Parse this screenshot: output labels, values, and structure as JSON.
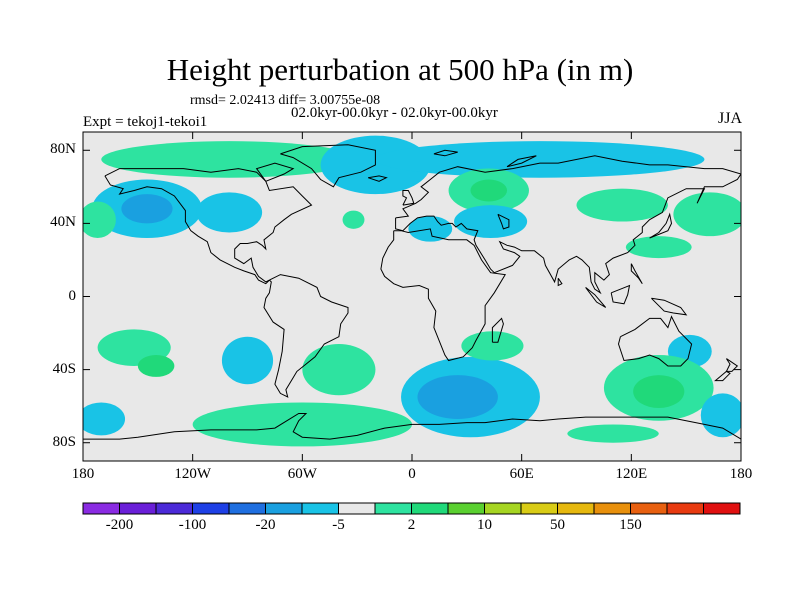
{
  "map": {
    "title": "Height perturbation at 500 hPa (in m)",
    "stats_text": "rmsd= 2.02413 diff= 3.00755e-08",
    "period_text": "02.0kyr-00.0kyr - 02.0kyr-00.0kyr",
    "expt_text": "Expt = tekoj1-tekoi1",
    "season": "JJA",
    "lat_ticks": [
      "80N",
      "40N",
      "0",
      "40S",
      "80S"
    ],
    "lon_ticks": [
      "180",
      "120W",
      "60W",
      "0",
      "60E",
      "120E",
      "180"
    ],
    "lat_values": [
      80,
      40,
      0,
      -40,
      -80
    ],
    "lon_values": [
      -180,
      -120,
      -60,
      0,
      60,
      120,
      180
    ],
    "extent": {
      "lon": [
        -180,
        180
      ],
      "lat": [
        -90,
        90
      ]
    },
    "projection": "cylindrical-equidistant",
    "background_color": "#e8e8e8",
    "coastline_color": "#000000"
  },
  "colorbar": {
    "colors": [
      "#8a2be2",
      "#6a1fd8",
      "#4b2ad8",
      "#1e40e6",
      "#1f6fe0",
      "#1aa0e0",
      "#19c3e6",
      "#e8e8e8",
      "#2ee3a0",
      "#20d97a",
      "#5ad030",
      "#a6d522",
      "#d9cc16",
      "#e6b80e",
      "#e8900c",
      "#e86010",
      "#e83a10",
      "#e01010"
    ],
    "labels": [
      "-200",
      "-100",
      "-20",
      "-5",
      "2",
      "10",
      "50",
      "150"
    ],
    "label_boundaries": [
      1,
      3,
      5,
      7,
      9,
      11,
      13,
      15
    ]
  },
  "anomalies": [
    {
      "lon": -100,
      "lat": 75,
      "rx": 70,
      "ry": 10,
      "level": "pos-light",
      "color": "#2ee3a0"
    },
    {
      "lon": -20,
      "lat": 72,
      "rx": 30,
      "ry": 16,
      "level": "neg-light",
      "color": "#19c3e6"
    },
    {
      "lon": 70,
      "lat": 75,
      "rx": 90,
      "ry": 10,
      "level": "neg-light",
      "color": "#19c3e6"
    },
    {
      "lon": -145,
      "lat": 48,
      "rx": 30,
      "ry": 16,
      "level": "neg-light",
      "color": "#19c3e6"
    },
    {
      "lon": -145,
      "lat": 48,
      "rx": 14,
      "ry": 8,
      "level": "neg-mid",
      "color": "#1aa0e0"
    },
    {
      "lon": -172,
      "lat": 42,
      "rx": 10,
      "ry": 10,
      "level": "pos-light",
      "color": "#2ee3a0"
    },
    {
      "lon": -100,
      "lat": 46,
      "rx": 18,
      "ry": 11,
      "level": "neg-light",
      "color": "#19c3e6"
    },
    {
      "lon": -32,
      "lat": 42,
      "rx": 6,
      "ry": 5,
      "level": "pos-light",
      "color": "#2ee3a0"
    },
    {
      "lon": 42,
      "lat": 58,
      "rx": 22,
      "ry": 12,
      "level": "pos-light",
      "color": "#2ee3a0"
    },
    {
      "lon": 42,
      "lat": 58,
      "rx": 10,
      "ry": 6,
      "level": "pos-mid",
      "color": "#20d97a"
    },
    {
      "lon": 10,
      "lat": 37,
      "rx": 12,
      "ry": 7,
      "level": "neg-light",
      "color": "#19c3e6"
    },
    {
      "lon": 43,
      "lat": 41,
      "rx": 20,
      "ry": 9,
      "level": "neg-light",
      "color": "#19c3e6"
    },
    {
      "lon": 115,
      "lat": 50,
      "rx": 25,
      "ry": 9,
      "level": "pos-light",
      "color": "#2ee3a0"
    },
    {
      "lon": 163,
      "lat": 45,
      "rx": 20,
      "ry": 12,
      "level": "pos-light",
      "color": "#2ee3a0"
    },
    {
      "lon": 135,
      "lat": 27,
      "rx": 18,
      "ry": 6,
      "level": "pos-light",
      "color": "#2ee3a0"
    },
    {
      "lon": -152,
      "lat": -28,
      "rx": 20,
      "ry": 10,
      "level": "pos-light",
      "color": "#2ee3a0"
    },
    {
      "lon": -140,
      "lat": -38,
      "rx": 10,
      "ry": 6,
      "level": "pos-mid",
      "color": "#20d97a"
    },
    {
      "lon": -90,
      "lat": -35,
      "rx": 14,
      "ry": 13,
      "level": "neg-light",
      "color": "#19c3e6"
    },
    {
      "lon": -60,
      "lat": -70,
      "rx": 60,
      "ry": 12,
      "level": "pos-light",
      "color": "#2ee3a0"
    },
    {
      "lon": -40,
      "lat": -40,
      "rx": 20,
      "ry": 14,
      "level": "pos-light",
      "color": "#2ee3a0"
    },
    {
      "lon": 32,
      "lat": -55,
      "rx": 38,
      "ry": 22,
      "level": "neg-light",
      "color": "#19c3e6"
    },
    {
      "lon": 25,
      "lat": -55,
      "rx": 22,
      "ry": 12,
      "level": "neg-mid",
      "color": "#1aa0e0"
    },
    {
      "lon": 44,
      "lat": -27,
      "rx": 17,
      "ry": 8,
      "level": "pos-light",
      "color": "#2ee3a0"
    },
    {
      "lon": -170,
      "lat": -67,
      "rx": 13,
      "ry": 9,
      "level": "neg-light",
      "color": "#19c3e6"
    },
    {
      "lon": 152,
      "lat": -30,
      "rx": 12,
      "ry": 9,
      "level": "neg-light",
      "color": "#19c3e6"
    },
    {
      "lon": 135,
      "lat": -50,
      "rx": 30,
      "ry": 18,
      "level": "pos-light",
      "color": "#2ee3a0"
    },
    {
      "lon": 135,
      "lat": -52,
      "rx": 14,
      "ry": 9,
      "level": "pos-mid",
      "color": "#20d97a"
    },
    {
      "lon": 170,
      "lat": -65,
      "rx": 12,
      "ry": 12,
      "level": "neg-light",
      "color": "#19c3e6"
    },
    {
      "lon": 110,
      "lat": -75,
      "rx": 25,
      "ry": 5,
      "level": "pos-light",
      "color": "#2ee3a0"
    }
  ]
}
